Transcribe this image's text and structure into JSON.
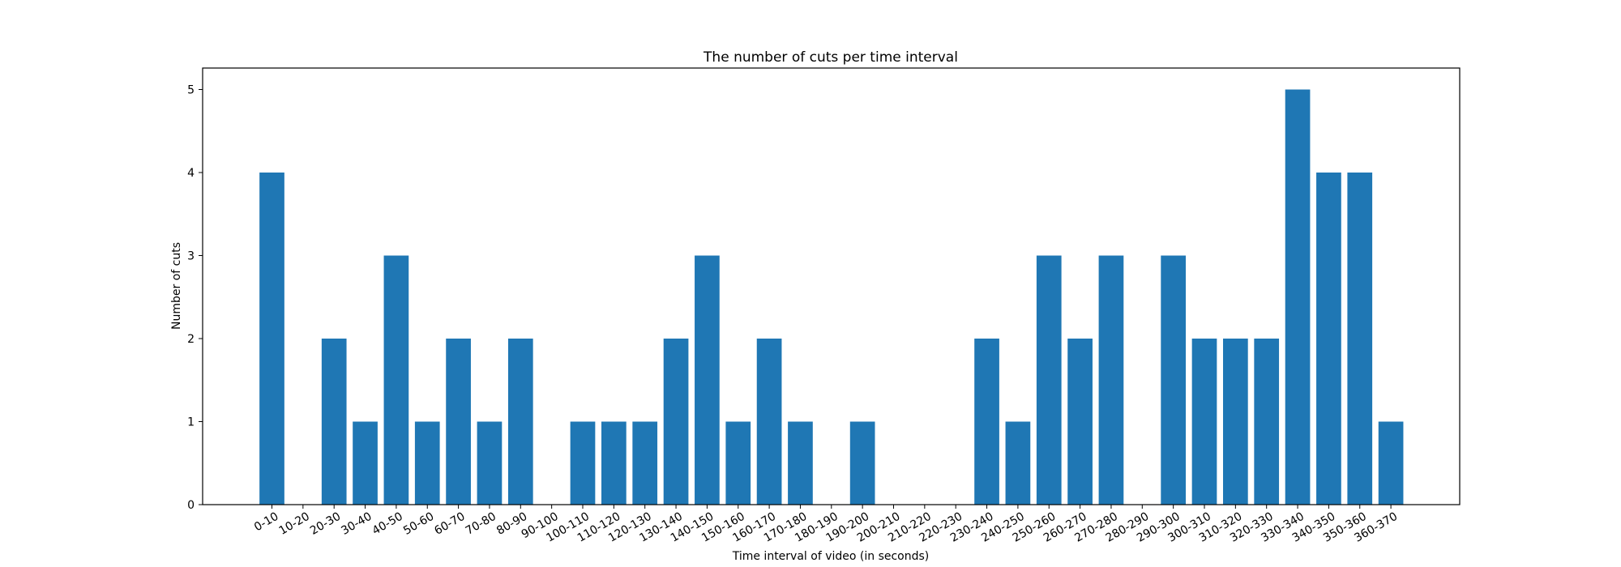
{
  "chart_data": {
    "type": "bar",
    "title": "The number of cuts per time interval",
    "xlabel": "Time interval of video (in seconds)",
    "ylabel": "Number of cuts",
    "categories": [
      "0-10",
      "10-20",
      "20-30",
      "30-40",
      "40-50",
      "50-60",
      "60-70",
      "70-80",
      "80-90",
      "90-100",
      "100-110",
      "110-120",
      "120-130",
      "130-140",
      "140-150",
      "150-160",
      "160-170",
      "170-180",
      "180-190",
      "190-200",
      "200-210",
      "210-220",
      "220-230",
      "230-240",
      "240-250",
      "250-260",
      "260-270",
      "270-280",
      "280-290",
      "290-300",
      "300-310",
      "310-320",
      "320-330",
      "330-340",
      "340-350",
      "350-360",
      "360-370"
    ],
    "values": [
      4,
      0,
      2,
      1,
      3,
      1,
      2,
      1,
      2,
      0,
      1,
      1,
      1,
      2,
      3,
      1,
      2,
      1,
      0,
      1,
      0,
      0,
      0,
      2,
      1,
      3,
      2,
      3,
      0,
      3,
      2,
      2,
      2,
      5,
      4,
      4,
      1
    ],
    "yticks": [
      "0",
      "1",
      "2",
      "3",
      "4",
      "5"
    ],
    "ylim": [
      0,
      5.25
    ],
    "bar_color": "#1f77b4",
    "grid": false
  }
}
